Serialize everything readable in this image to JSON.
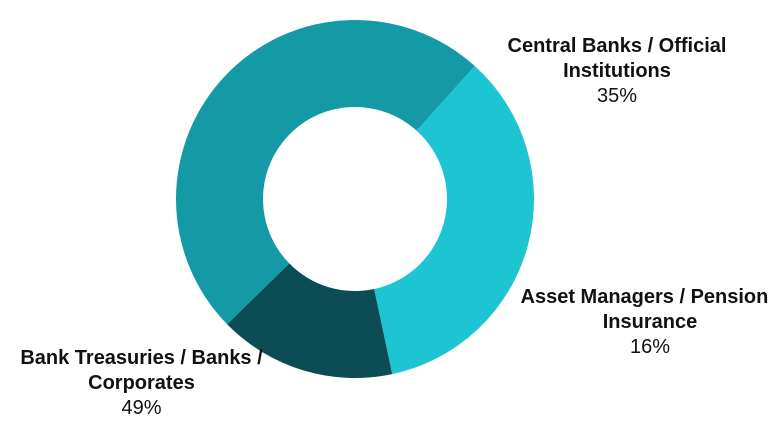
{
  "chart_data": {
    "type": "pie",
    "variant": "donut",
    "legend": "none",
    "slices": [
      {
        "name": "Central Banks / Official Institutions",
        "value": 35,
        "value_label": "35%",
        "color": "#1dc4d1"
      },
      {
        "name": "Asset Managers / Pension / Insurance",
        "value": 16,
        "value_label": "16%",
        "color": "#0c4c55"
      },
      {
        "name": "Bank Treasuries / Banks / Corporates",
        "value": 49,
        "value_label": "49%",
        "color": "#149aa7"
      }
    ]
  }
}
